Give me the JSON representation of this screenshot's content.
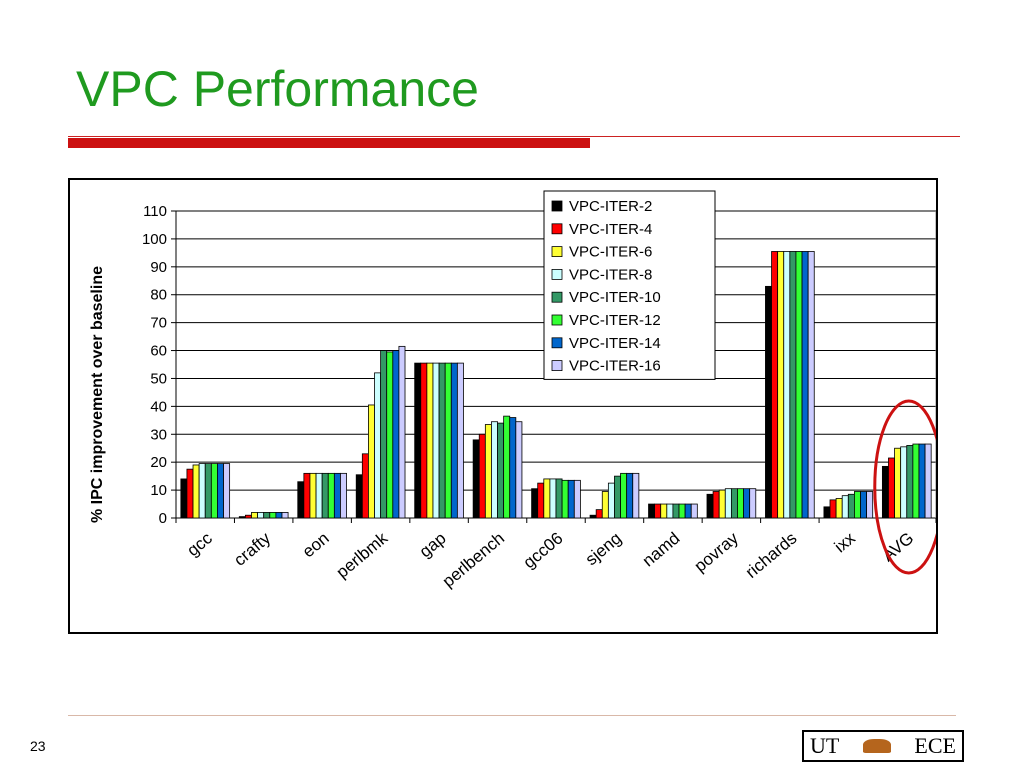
{
  "slide": {
    "title": "VPC Performance",
    "page_number": "23",
    "logo": {
      "left_text": "UT",
      "right_text": "ECE",
      "mark": "longhorn-icon"
    }
  },
  "chart_data": {
    "type": "bar",
    "title": "",
    "xlabel": "",
    "ylabel": "% IPC improvement over baseline",
    "ylim": [
      0,
      110
    ],
    "yticks": [
      0,
      10,
      20,
      30,
      40,
      50,
      60,
      70,
      80,
      90,
      100,
      110
    ],
    "grid": true,
    "legend_position": "top-right",
    "categories": [
      "gcc",
      "crafty",
      "eon",
      "perlbmk",
      "gap",
      "perlbench",
      "gcc06",
      "sjeng",
      "namd",
      "povray",
      "richards",
      "ixx",
      "AVG"
    ],
    "series": [
      {
        "name": "VPC-ITER-2",
        "color": "#000000",
        "values": [
          14,
          0.5,
          13,
          15.5,
          55.5,
          28,
          10.5,
          1,
          5,
          8.5,
          83,
          4,
          18.5
        ]
      },
      {
        "name": "VPC-ITER-4",
        "color": "#ff0000",
        "values": [
          17.5,
          1,
          16,
          23,
          55.5,
          30,
          12.5,
          3,
          5,
          9.5,
          95.5,
          6.5,
          21.5
        ]
      },
      {
        "name": "VPC-ITER-6",
        "color": "#ffff33",
        "values": [
          19,
          2,
          16,
          40.5,
          55.5,
          33.5,
          14,
          9.5,
          5,
          10,
          95.5,
          7,
          25
        ]
      },
      {
        "name": "VPC-ITER-8",
        "color": "#ccffff",
        "values": [
          19.5,
          2,
          16,
          52,
          55.5,
          34.5,
          14,
          12.5,
          5,
          10.5,
          95.5,
          8,
          25.5
        ]
      },
      {
        "name": "VPC-ITER-10",
        "color": "#339966",
        "values": [
          19.5,
          2,
          16,
          60,
          55.5,
          34,
          14,
          15,
          5,
          10.5,
          95.5,
          8.5,
          26
        ]
      },
      {
        "name": "VPC-ITER-12",
        "color": "#33ff33",
        "values": [
          19.5,
          2,
          16,
          59.5,
          55.5,
          36.5,
          13.5,
          16,
          5,
          10.5,
          95.5,
          9.5,
          26.5
        ]
      },
      {
        "name": "VPC-ITER-14",
        "color": "#0066cc",
        "values": [
          19.5,
          2,
          16,
          60,
          55.5,
          36,
          13.5,
          16,
          5,
          10.5,
          95.5,
          9.5,
          26.5
        ]
      },
      {
        "name": "VPC-ITER-16",
        "color": "#ccccff",
        "values": [
          19.5,
          2,
          16,
          61.5,
          55.5,
          34.5,
          13.5,
          16,
          5,
          10.5,
          95.5,
          9.5,
          26.5
        ]
      }
    ],
    "annotation": {
      "type": "ellipse",
      "target_category": "AVG",
      "color": "#cc1111"
    }
  }
}
